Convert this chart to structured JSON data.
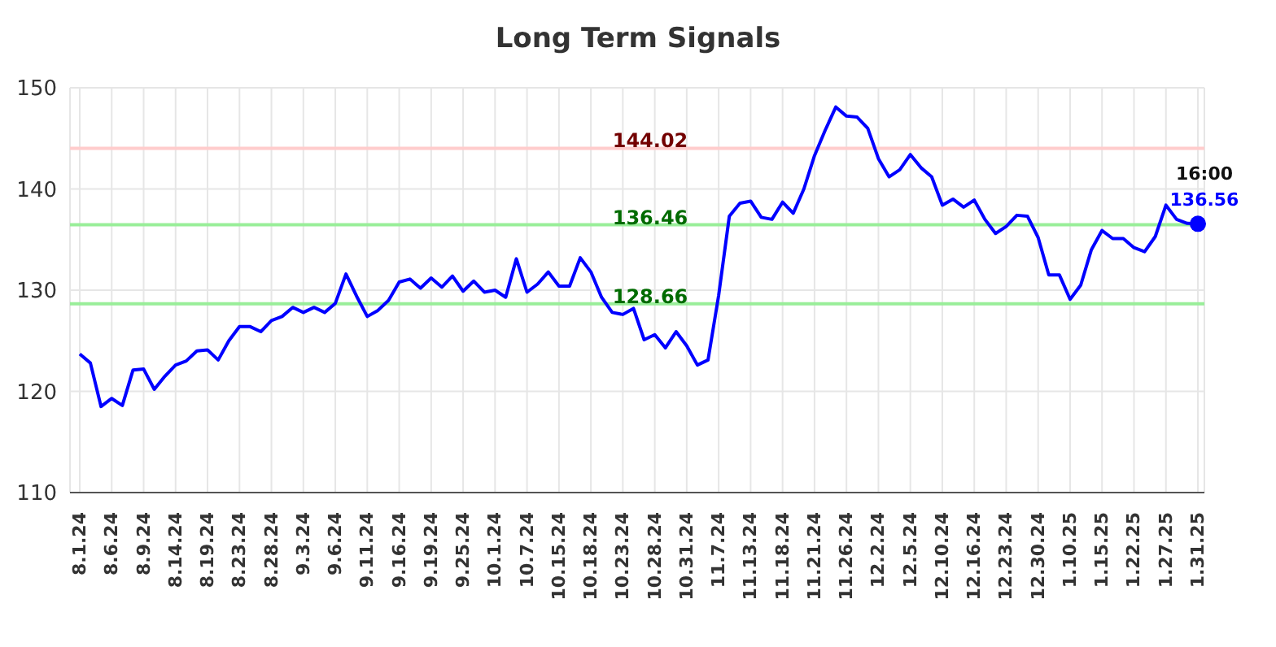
{
  "chart_data": {
    "type": "line",
    "title": "Long Term Signals",
    "categories": [
      "8.1.24",
      null,
      null,
      "8.6.24",
      null,
      null,
      "8.9.24",
      null,
      null,
      "8.14.24",
      null,
      null,
      "8.19.24",
      null,
      null,
      "8.23.24",
      null,
      null,
      "8.28.24",
      null,
      null,
      "9.3.24",
      null,
      null,
      "9.6.24",
      null,
      null,
      "9.11.24",
      null,
      null,
      "9.16.24",
      null,
      null,
      "9.19.24",
      null,
      null,
      "9.25.24",
      null,
      null,
      "10.1.24",
      null,
      null,
      "10.7.24",
      null,
      null,
      "10.15.24",
      null,
      null,
      "10.18.24",
      null,
      null,
      "10.23.24",
      null,
      null,
      "10.28.24",
      null,
      null,
      "10.31.24",
      null,
      null,
      "11.7.24",
      null,
      null,
      "11.13.24",
      null,
      null,
      "11.18.24",
      null,
      null,
      "11.21.24",
      null,
      null,
      "11.26.24",
      null,
      null,
      "12.2.24",
      null,
      null,
      "12.5.24",
      null,
      null,
      "12.10.24",
      null,
      null,
      "12.16.24",
      null,
      null,
      "12.23.24",
      null,
      null,
      "12.30.24",
      null,
      null,
      "1.10.25",
      null,
      null,
      "1.15.25",
      null,
      null,
      "1.22.25",
      null,
      null,
      "1.27.25",
      null,
      null,
      "1.31.25"
    ],
    "series": [
      {
        "color": "#0000ff",
        "values": [
          123.7,
          122.8,
          118.5,
          119.3,
          118.6,
          122.1,
          122.2,
          120.2,
          121.5,
          122.6,
          123.0,
          124.0,
          124.1,
          123.1,
          125.0,
          126.4,
          126.4,
          125.9,
          127.0,
          127.4,
          128.3,
          127.8,
          128.3,
          127.8,
          128.7,
          131.6,
          129.4,
          127.4,
          128.0,
          129.0,
          130.8,
          131.1,
          130.2,
          131.2,
          130.3,
          131.4,
          129.9,
          130.9,
          129.8,
          130.0,
          129.3,
          133.1,
          129.8,
          130.6,
          131.8,
          130.4,
          130.4,
          133.2,
          131.8,
          129.3,
          127.8,
          127.6,
          128.2,
          125.1,
          125.6,
          124.3,
          125.9,
          124.5,
          122.6,
          123.1,
          129.5,
          137.3,
          138.6,
          138.8,
          137.2,
          137.0,
          138.7,
          137.6,
          140.0,
          143.3,
          145.8,
          148.1,
          147.2,
          147.1,
          146.0,
          143.0,
          141.2,
          141.9,
          143.4,
          142.1,
          141.2,
          138.4,
          139.0,
          138.2,
          138.9,
          137.0,
          135.6,
          136.3,
          137.4,
          137.3,
          135.2,
          131.5,
          131.5,
          129.1,
          130.5,
          134.0,
          135.9,
          135.1,
          135.1,
          134.2,
          133.8,
          135.3,
          138.4,
          137.0,
          136.6,
          136.56
        ]
      }
    ],
    "ylim": [
      110,
      150
    ],
    "yticks": [
      110,
      120,
      130,
      140,
      150
    ],
    "grid": true,
    "marker": "none",
    "line_style": "solid",
    "ref_lines": [
      {
        "axis": "y",
        "value": 144.02,
        "label": "144.02",
        "color": "#ffcccc"
      },
      {
        "axis": "y",
        "value": 136.46,
        "label": "136.46",
        "color": "#99ee99"
      },
      {
        "axis": "y",
        "value": 128.66,
        "label": "128.66",
        "color": "#99ee99"
      }
    ],
    "annotations": [
      {
        "text": "16:00",
        "x": "1.31.25",
        "y": 136.56
      },
      {
        "text": "136.56",
        "x": "1.31.25",
        "y": 136.56
      }
    ]
  }
}
